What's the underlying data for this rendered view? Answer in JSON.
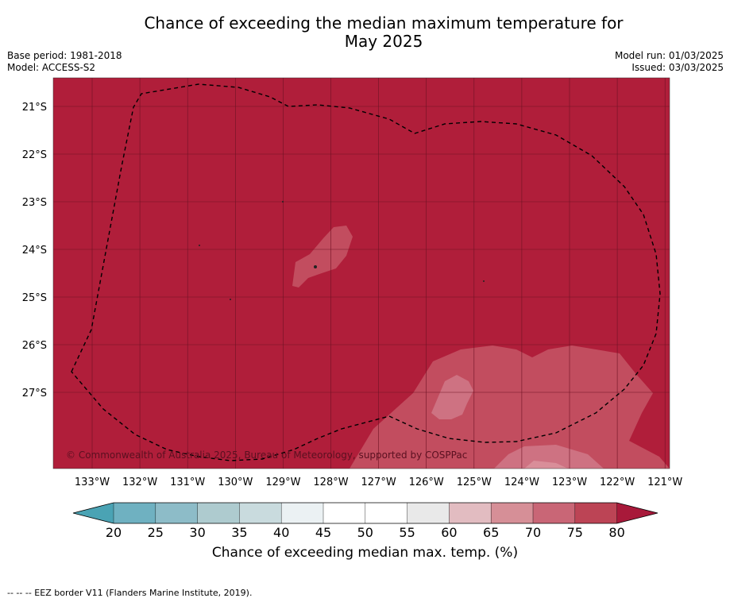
{
  "title": "Chance of exceeding the median maximum temperature for",
  "title_line2": "May 2025",
  "left_meta": {
    "base_period": "Base period: 1981-2018",
    "model": "Model: ACCESS-S2"
  },
  "right_meta": {
    "model_run": "Model run: 01/03/2025",
    "issued": "Issued: 03/03/2025"
  },
  "map": {
    "lat_labels": [
      "21°S",
      "22°S",
      "23°S",
      "24°S",
      "25°S",
      "26°S",
      "27°S"
    ],
    "lon_labels": [
      "133°W",
      "132°W",
      "131°W",
      "130°W",
      "129°W",
      "128°W",
      "127°W",
      "126°W",
      "125°W",
      "124°W",
      "123°W",
      "122°W",
      "121°W"
    ],
    "copyright": "© Commonwealth of Australia 2025, Bureau of Meteorology, supported by COSPPac",
    "fill_color": "#b01e3a"
  },
  "colorbar": {
    "ticks": [
      "20",
      "25",
      "30",
      "35",
      "40",
      "45",
      "50",
      "55",
      "60",
      "65",
      "70",
      "75",
      "80"
    ],
    "colors": [
      "#6fb1c1",
      "#8dbcc8",
      "#aecbcf",
      "#c9dbde",
      "#ebf1f3",
      "#ffffff",
      "#ffffff",
      "#e9e9e9",
      "#e2bcc1",
      "#d68f97",
      "#c96676",
      "#bc4455"
    ],
    "under_color": "#4aa3b4",
    "over_color": "#a8193a",
    "label": "Chance of exceeding median max. temp. (%)"
  },
  "footnote": "--  --  -- EEZ border V11 (Flanders Marine Institute, 2019)."
}
